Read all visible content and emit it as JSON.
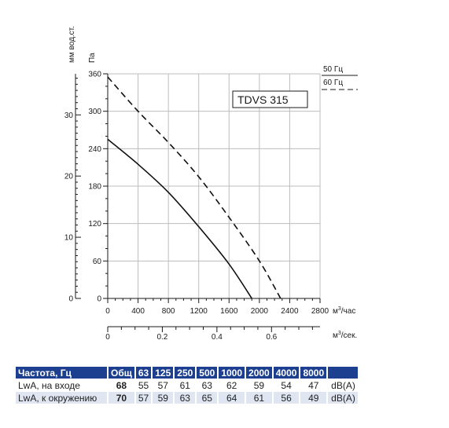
{
  "chart_data": {
    "type": "line",
    "model": "TDVS 315",
    "ylabel_left": "мм вод.ст.",
    "ylabel_right": "Па",
    "xlabel_top": "м³/час",
    "xlabel_bottom": "м³/сек.",
    "x_unit_main": "м",
    "x_unit_main_sup": "3",
    "x_unit_main_tail": "/час",
    "x_unit_sec": "м",
    "x_unit_sec_sup": "3",
    "x_unit_sec_tail": "/сек.",
    "x_ticks": [
      "0",
      "400",
      "800",
      "1200",
      "1600",
      "2000",
      "2400",
      "2800"
    ],
    "x_ticks_sec": [
      "0",
      "0.2",
      "0.4",
      "0.6"
    ],
    "y_ticks_pa": [
      "0",
      "60",
      "120",
      "180",
      "240",
      "300",
      "360"
    ],
    "y_ticks_mm": [
      "0",
      "10",
      "20",
      "30"
    ],
    "xlim": [
      0,
      2800
    ],
    "ylim": [
      0,
      360
    ],
    "grid": true,
    "legend_position": "top-right",
    "series": [
      {
        "name": "50 Гц",
        "style": "solid",
        "x": [
          0,
          400,
          800,
          1200,
          1600,
          1900
        ],
        "y": [
          255,
          215,
          170,
          115,
          55,
          0
        ]
      },
      {
        "name": "60 Гц",
        "style": "dashed",
        "x": [
          0,
          400,
          800,
          1200,
          1600,
          2000,
          2280
        ],
        "y": [
          355,
          300,
          250,
          195,
          130,
          60,
          0
        ]
      }
    ]
  },
  "table": {
    "headers": [
      "Частота, Гц",
      "Общ",
      "63",
      "125",
      "250",
      "500",
      "1000",
      "2000",
      "4000",
      "8000",
      ""
    ],
    "rows": [
      {
        "label": "LwA, на входе",
        "total": "68",
        "values": [
          "55",
          "57",
          "61",
          "63",
          "62",
          "59",
          "54",
          "47"
        ],
        "unit": "dB(A)"
      },
      {
        "label": "LwA, к окружению",
        "total": "70",
        "values": [
          "57",
          "59",
          "63",
          "65",
          "64",
          "61",
          "56",
          "49"
        ],
        "unit": "dB(A)"
      }
    ]
  }
}
